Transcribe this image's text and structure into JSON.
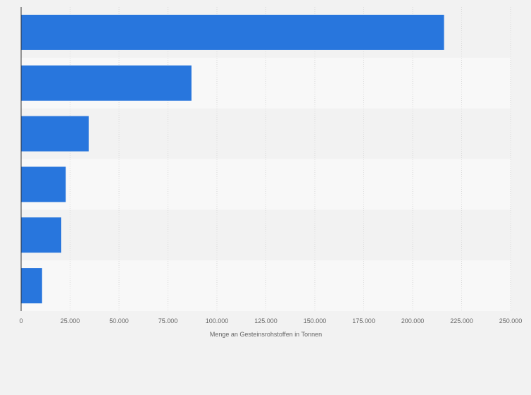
{
  "chart_data": {
    "type": "bar",
    "orientation": "horizontal",
    "title": "",
    "xlabel": "Menge an Gesteinsrohstoffen in Tonnen",
    "ylabel": "",
    "categories": [
      "",
      "",
      "",
      "",
      "",
      ""
    ],
    "values": [
      216000,
      87000,
      34500,
      22800,
      20500,
      10700
    ],
    "xlim": [
      0,
      250000
    ],
    "xticks": [
      0,
      25000,
      50000,
      75000,
      100000,
      125000,
      150000,
      175000,
      200000,
      225000,
      250000
    ],
    "xtick_labels": [
      "0",
      "25.000",
      "50.000",
      "75.000",
      "100.000",
      "125.000",
      "150.000",
      "175.000",
      "200.000",
      "225.000",
      "250.000"
    ],
    "grid": true,
    "legend": "none",
    "colors": {
      "bar": "#2876dd",
      "band_dark": "#f2f2f2",
      "band_light": "#f8f8f8",
      "grid": "#d9d9d9",
      "axis": "#333333",
      "text": "#666666"
    }
  }
}
